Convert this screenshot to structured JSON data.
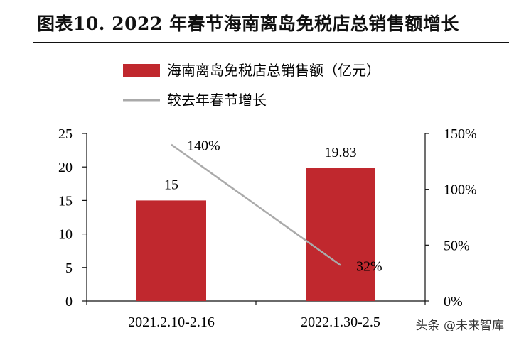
{
  "header": {
    "title": "图表10. 2022 年春节海南离岛免税店总销售额增长"
  },
  "watermark": "头条 @未来智库",
  "colors": {
    "bar": "#c0282e",
    "line": "#aaaaaa",
    "axis": "#111111"
  },
  "chart_data": {
    "type": "bar",
    "title": "图表10. 2022 年春节海南离岛免税店总销售额增长",
    "categories": [
      "2021.2.10-2.16",
      "2022.1.30-2.5"
    ],
    "series": [
      {
        "name": "海南离岛免税店总销售额（亿元）",
        "type": "bar",
        "axis": "left",
        "values": [
          15,
          19.83
        ],
        "labels": [
          "15",
          "19.83"
        ]
      },
      {
        "name": "较去年春节增长",
        "type": "line",
        "axis": "right",
        "values": [
          140,
          32
        ],
        "labels": [
          "140%",
          "32%"
        ]
      }
    ],
    "y_left": {
      "min": 0,
      "max": 25,
      "ticks": [
        0,
        5,
        10,
        15,
        20,
        25
      ]
    },
    "y_right": {
      "min": 0,
      "max": 150,
      "ticks": [
        "0%",
        "50%",
        "100%",
        "150%"
      ],
      "tick_values": [
        0,
        50,
        100,
        150
      ]
    },
    "legend": "top-left",
    "grid": false
  }
}
